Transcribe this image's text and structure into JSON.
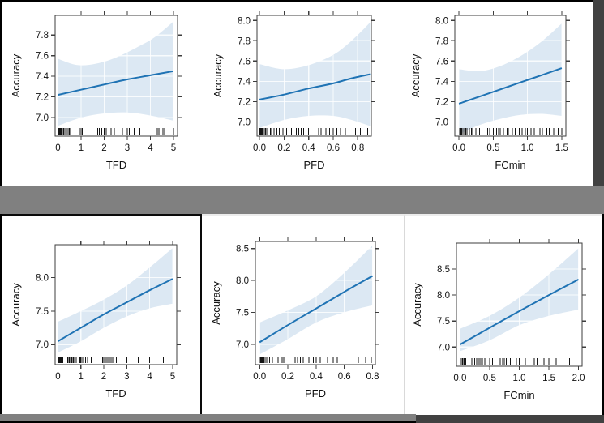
{
  "page": {
    "colors": {
      "page-bg": "#000000",
      "panel-bg": "#ffffff",
      "divider": "#808080",
      "edge-dark": "#414141"
    }
  },
  "style": {
    "line_color": "#1f73b4",
    "band_color": "#dce8f3",
    "grid_color": "rgba(255,255,255,0.8)",
    "axis_color": "#3d3d3d",
    "text_color": "#111111",
    "rug_color": "#141414"
  },
  "chart_data": [
    {
      "id": "top-tfd",
      "type": "line",
      "row": 1,
      "col": 1,
      "xlabel": "TFD",
      "ylabel": "Accuracy",
      "xlim": [
        -0.12,
        5.18
      ],
      "ylim": [
        6.82,
        7.99
      ],
      "x_ticks": [
        0,
        1,
        2,
        3,
        4,
        5
      ],
      "x_tick_labels": [
        "0",
        "1",
        "2",
        "3",
        "4",
        "5"
      ],
      "y_ticks": [
        7.0,
        7.2,
        7.4,
        7.6,
        7.8
      ],
      "y_tick_labels": [
        "7.0",
        "7.2",
        "7.4",
        "7.6",
        "7.8"
      ],
      "line": [
        [
          0,
          7.22
        ],
        [
          1,
          7.27
        ],
        [
          2,
          7.32
        ],
        [
          3,
          7.37
        ],
        [
          4,
          7.41
        ],
        [
          5,
          7.45
        ]
      ],
      "band_upper": [
        [
          0,
          7.57
        ],
        [
          0.8,
          7.51
        ],
        [
          1.6,
          7.52
        ],
        [
          2.5,
          7.58
        ],
        [
          3.5,
          7.69
        ],
        [
          4.2,
          7.78
        ],
        [
          5,
          7.93
        ]
      ],
      "band_lower": [
        [
          0,
          6.92
        ],
        [
          1,
          7.0
        ],
        [
          2,
          7.04
        ],
        [
          3,
          7.05
        ],
        [
          4,
          7.02
        ],
        [
          5,
          6.97
        ]
      ],
      "rug": [
        0.02,
        0.04,
        0.05,
        0.07,
        0.08,
        0.1,
        0.12,
        0.14,
        0.16,
        0.18,
        0.2,
        0.25,
        0.3,
        0.38,
        0.45,
        0.5,
        0.55,
        0.93,
        1.0,
        1.05,
        1.12,
        1.3,
        1.65,
        1.72,
        1.8,
        1.9,
        2.0,
        2.1,
        2.3,
        2.45,
        2.6,
        2.8,
        3.0,
        3.1,
        3.3,
        3.55,
        3.9,
        4.3,
        4.38,
        4.55,
        4.62,
        5.0
      ],
      "grid": true,
      "legend": null
    },
    {
      "id": "top-pfd",
      "type": "line",
      "row": 1,
      "col": 2,
      "xlabel": "PFD",
      "ylabel": "Accuracy",
      "xlim": [
        -0.02,
        0.91
      ],
      "ylim": [
        6.86,
        8.05
      ],
      "x_ticks": [
        0.0,
        0.2,
        0.4,
        0.6,
        0.8
      ],
      "x_tick_labels": [
        "0.0",
        "0.2",
        "0.4",
        "0.6",
        "0.8"
      ],
      "y_ticks": [
        7.0,
        7.2,
        7.4,
        7.6,
        7.8,
        8.0
      ],
      "y_tick_labels": [
        "7.0",
        "7.2",
        "7.4",
        "7.6",
        "7.8",
        "8.0"
      ],
      "line": [
        [
          0,
          7.22
        ],
        [
          0.2,
          7.27
        ],
        [
          0.4,
          7.33
        ],
        [
          0.6,
          7.38
        ],
        [
          0.75,
          7.43
        ],
        [
          0.9,
          7.47
        ]
      ],
      "band_upper": [
        [
          0,
          7.57
        ],
        [
          0.2,
          7.52
        ],
        [
          0.4,
          7.56
        ],
        [
          0.6,
          7.66
        ],
        [
          0.75,
          7.8
        ],
        [
          0.9,
          7.98
        ]
      ],
      "band_lower": [
        [
          0,
          6.94
        ],
        [
          0.2,
          7.02
        ],
        [
          0.4,
          7.06
        ],
        [
          0.6,
          7.06
        ],
        [
          0.75,
          7.02
        ],
        [
          0.9,
          6.96
        ]
      ],
      "rug": [
        0.003,
        0.006,
        0.01,
        0.013,
        0.016,
        0.02,
        0.025,
        0.03,
        0.04,
        0.05,
        0.06,
        0.07,
        0.09,
        0.1,
        0.12,
        0.14,
        0.16,
        0.19,
        0.22,
        0.24,
        0.26,
        0.3,
        0.32,
        0.34,
        0.36,
        0.4,
        0.42,
        0.45,
        0.48,
        0.5,
        0.54,
        0.57,
        0.6,
        0.63,
        0.66,
        0.7,
        0.73,
        0.78,
        0.82,
        0.88
      ],
      "grid": true,
      "legend": null
    },
    {
      "id": "top-fcmin",
      "type": "line",
      "row": 1,
      "col": 3,
      "xlabel": "FCmin",
      "ylabel": "Accuracy",
      "xlim": [
        -0.06,
        1.56
      ],
      "ylim": [
        6.86,
        8.05
      ],
      "x_ticks": [
        0.0,
        0.5,
        1.0,
        1.5
      ],
      "x_tick_labels": [
        "0.0",
        "0.5",
        "1.0",
        "1.5"
      ],
      "y_ticks": [
        7.0,
        7.2,
        7.4,
        7.6,
        7.8,
        8.0
      ],
      "y_tick_labels": [
        "7.0",
        "7.2",
        "7.4",
        "7.6",
        "7.8",
        "8.0"
      ],
      "line": [
        [
          0,
          7.18
        ],
        [
          0.3,
          7.25
        ],
        [
          0.6,
          7.32
        ],
        [
          0.9,
          7.39
        ],
        [
          1.2,
          7.46
        ],
        [
          1.5,
          7.53
        ]
      ],
      "band_upper": [
        [
          0,
          7.52
        ],
        [
          0.3,
          7.5
        ],
        [
          0.6,
          7.55
        ],
        [
          0.9,
          7.65
        ],
        [
          1.2,
          7.79
        ],
        [
          1.5,
          7.97
        ]
      ],
      "band_lower": [
        [
          0,
          6.88
        ],
        [
          0.3,
          6.97
        ],
        [
          0.6,
          7.03
        ],
        [
          0.9,
          7.07
        ],
        [
          1.2,
          7.08
        ],
        [
          1.5,
          7.06
        ]
      ],
      "rug": [
        0.01,
        0.02,
        0.03,
        0.04,
        0.06,
        0.08,
        0.1,
        0.12,
        0.15,
        0.18,
        0.2,
        0.25,
        0.3,
        0.42,
        0.45,
        0.5,
        0.55,
        0.58,
        0.6,
        0.65,
        0.7,
        0.72,
        0.78,
        0.82,
        0.88,
        0.92,
        0.97,
        1.0,
        1.05,
        1.1,
        1.15,
        1.18,
        1.22,
        1.28,
        1.32,
        1.38,
        1.45,
        1.5
      ],
      "grid": true,
      "legend": null
    },
    {
      "id": "bottom-tfd",
      "type": "line",
      "row": 2,
      "col": 1,
      "xlabel": "TFD",
      "ylabel": "Accuracy",
      "xlim": [
        -0.12,
        5.18
      ],
      "ylim": [
        6.7,
        8.49
      ],
      "x_ticks": [
        0,
        1,
        2,
        3,
        4,
        5
      ],
      "x_tick_labels": [
        "0",
        "1",
        "2",
        "3",
        "4",
        "5"
      ],
      "y_ticks": [
        7.0,
        7.5,
        8.0
      ],
      "y_tick_labels": [
        "7.0",
        "7.5",
        "8.0"
      ],
      "line": [
        [
          0,
          7.05
        ],
        [
          1,
          7.25
        ],
        [
          2,
          7.45
        ],
        [
          3,
          7.63
        ],
        [
          4,
          7.81
        ],
        [
          5,
          7.98
        ]
      ],
      "band_upper": [
        [
          0,
          7.34
        ],
        [
          1,
          7.5
        ],
        [
          2,
          7.67
        ],
        [
          3,
          7.88
        ],
        [
          4,
          8.15
        ],
        [
          5,
          8.44
        ]
      ],
      "band_lower": [
        [
          0,
          6.88
        ],
        [
          1,
          7.05
        ],
        [
          2,
          7.25
        ],
        [
          3,
          7.42
        ],
        [
          4,
          7.54
        ],
        [
          5,
          7.61
        ]
      ],
      "rug": [
        0.02,
        0.04,
        0.06,
        0.08,
        0.1,
        0.12,
        0.15,
        0.18,
        0.22,
        0.42,
        0.48,
        0.52,
        0.58,
        0.62,
        0.68,
        0.72,
        0.8,
        0.95,
        1.0,
        1.05,
        1.12,
        1.2,
        1.3,
        1.45,
        1.95,
        2.0,
        2.05,
        2.1,
        2.18,
        2.25,
        2.32,
        2.38,
        2.55,
        3.0,
        3.5,
        4.0,
        4.6
      ],
      "grid": true,
      "legend": null
    },
    {
      "id": "bottom-pfd",
      "type": "line",
      "row": 2,
      "col": 2,
      "xlabel": "PFD",
      "ylabel": "Accuracy",
      "xlim": [
        -0.03,
        0.82
      ],
      "ylim": [
        6.68,
        8.61
      ],
      "x_ticks": [
        0.0,
        0.2,
        0.4,
        0.6,
        0.8
      ],
      "x_tick_labels": [
        "0.0",
        "0.2",
        "0.4",
        "0.6",
        "0.8"
      ],
      "y_ticks": [
        7.0,
        7.5,
        8.0,
        8.5
      ],
      "y_tick_labels": [
        "7.0",
        "7.5",
        "8.0",
        "8.5"
      ],
      "line": [
        [
          0,
          7.03
        ],
        [
          0.2,
          7.3
        ],
        [
          0.4,
          7.56
        ],
        [
          0.6,
          7.82
        ],
        [
          0.8,
          8.07
        ]
      ],
      "band_upper": [
        [
          0,
          7.34
        ],
        [
          0.2,
          7.53
        ],
        [
          0.4,
          7.75
        ],
        [
          0.6,
          8.12
        ],
        [
          0.8,
          8.55
        ]
      ],
      "band_lower": [
        [
          0,
          6.84
        ],
        [
          0.2,
          7.08
        ],
        [
          0.4,
          7.34
        ],
        [
          0.6,
          7.5
        ],
        [
          0.8,
          7.61
        ]
      ],
      "rug": [
        0.004,
        0.008,
        0.012,
        0.016,
        0.02,
        0.025,
        0.03,
        0.04,
        0.05,
        0.06,
        0.07,
        0.09,
        0.13,
        0.15,
        0.16,
        0.17,
        0.18,
        0.25,
        0.27,
        0.29,
        0.31,
        0.33,
        0.35,
        0.38,
        0.4,
        0.43,
        0.45,
        0.48,
        0.52,
        0.55,
        0.7,
        0.75,
        0.79
      ],
      "grid": true,
      "legend": null
    },
    {
      "id": "bottom-fcmin",
      "type": "line",
      "row": 2,
      "col": 3,
      "xlabel": "FCmin",
      "ylabel": "Accuracy",
      "xlim": [
        -0.06,
        2.06
      ],
      "ylim": [
        6.63,
        9.0
      ],
      "x_ticks": [
        0.0,
        0.5,
        1.0,
        1.5,
        2.0
      ],
      "x_tick_labels": [
        "0.0",
        "0.5",
        "1.0",
        "1.5",
        "2.0"
      ],
      "y_ticks": [
        7.0,
        7.5,
        8.0,
        8.5
      ],
      "y_tick_labels": [
        "7.0",
        "7.5",
        "8.0",
        "8.5"
      ],
      "line": [
        [
          0,
          7.05
        ],
        [
          0.5,
          7.37
        ],
        [
          1,
          7.69
        ],
        [
          1.5,
          8.0
        ],
        [
          2,
          8.3
        ]
      ],
      "band_upper": [
        [
          0,
          7.35
        ],
        [
          0.5,
          7.6
        ],
        [
          1,
          7.95
        ],
        [
          1.5,
          8.4
        ],
        [
          2,
          8.9
        ]
      ],
      "band_lower": [
        [
          0,
          6.92
        ],
        [
          0.5,
          7.13
        ],
        [
          1,
          7.42
        ],
        [
          1.5,
          7.6
        ],
        [
          2,
          7.72
        ]
      ],
      "rug": [
        0.02,
        0.04,
        0.06,
        0.08,
        0.1,
        0.2,
        0.25,
        0.28,
        0.32,
        0.35,
        0.38,
        0.42,
        0.5,
        0.55,
        0.68,
        0.72,
        0.75,
        0.78,
        0.85,
        0.95,
        1.0,
        1.1,
        1.25,
        1.3,
        1.42,
        1.5,
        1.62,
        1.85
      ],
      "grid": true,
      "legend": null
    }
  ]
}
